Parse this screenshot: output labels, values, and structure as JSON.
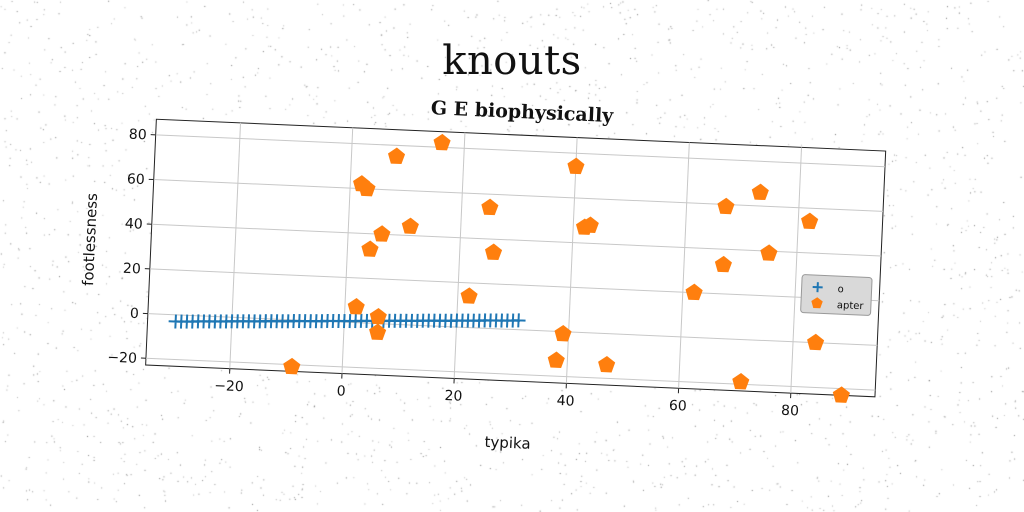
{
  "figure_title": "knouts",
  "chart_data": {
    "type": "scatter",
    "title": "G E biophysically",
    "xlabel": "typika",
    "ylabel": "footlessness",
    "xlim": [
      -35,
      95
    ],
    "ylim": [
      -23,
      87
    ],
    "xticks": [
      -20,
      0,
      20,
      40,
      60,
      80
    ],
    "yticks": [
      -20,
      0,
      20,
      40,
      60,
      80
    ],
    "grid": true,
    "legend_position": "right",
    "rotation_deg": 2.5,
    "series": [
      {
        "name": "o",
        "marker": "plus",
        "color": "#1f77b4",
        "connected": true,
        "x": [
          -30,
          -29,
          -28,
          -27,
          -26,
          -25,
          -24,
          -23,
          -22,
          -21,
          -20,
          -19,
          -18,
          -17,
          -16,
          -15,
          -14,
          -13,
          -12,
          -11,
          -10,
          -9,
          -8,
          -7,
          -6,
          -5,
          -4,
          -3,
          -2,
          -1,
          0,
          1,
          2,
          3,
          4,
          5,
          6,
          7,
          8,
          9,
          10,
          11,
          12,
          13,
          14,
          15,
          16,
          17,
          18,
          19,
          20,
          21,
          22,
          23,
          24,
          25,
          26,
          27,
          28,
          29,
          30,
          31
        ],
        "y": [
          -3,
          -2.9,
          -2.8,
          -2.7,
          -2.5,
          -2.4,
          -2.3,
          -2.2,
          -2.1,
          -2,
          -1.8,
          -1.7,
          -1.6,
          -1.5,
          -1.4,
          -1.3,
          -1.1,
          -1,
          -0.9,
          -0.8,
          -0.7,
          -0.5,
          -0.4,
          -0.3,
          -0.2,
          -0.1,
          0,
          0.2,
          0.3,
          0.4,
          0.5,
          0.6,
          0.7,
          0.9,
          1,
          1.1,
          1.2,
          1.3,
          1.5,
          1.6,
          1.7,
          1.8,
          1.9,
          2,
          2.2,
          2.3,
          2.4,
          2.5,
          2.6,
          2.7,
          2.9,
          3,
          3.1,
          3.2,
          3.3,
          3.5,
          3.6,
          3.7,
          3.8,
          3.9,
          4,
          4.2
        ]
      },
      {
        "name": "apter",
        "marker": "pentagon",
        "color": "#ff7f0e",
        "connected": false,
        "x": [
          16,
          8,
          2,
          3,
          6,
          11,
          4,
          25,
          26,
          22,
          2,
          6,
          6,
          -9,
          40,
          42,
          43,
          39,
          38,
          47,
          67,
          73,
          67,
          75,
          82,
          62,
          84,
          71,
          89
        ],
        "y": [
          82,
          75,
          62,
          60,
          40,
          44,
          33,
          54,
          34,
          14,
          7,
          3,
          -4,
          -21,
          74,
          47,
          48,
          -1,
          -13,
          -14,
          59,
          66,
          33,
          39,
          54,
          20,
          0,
          -19,
          -23
        ]
      }
    ]
  }
}
